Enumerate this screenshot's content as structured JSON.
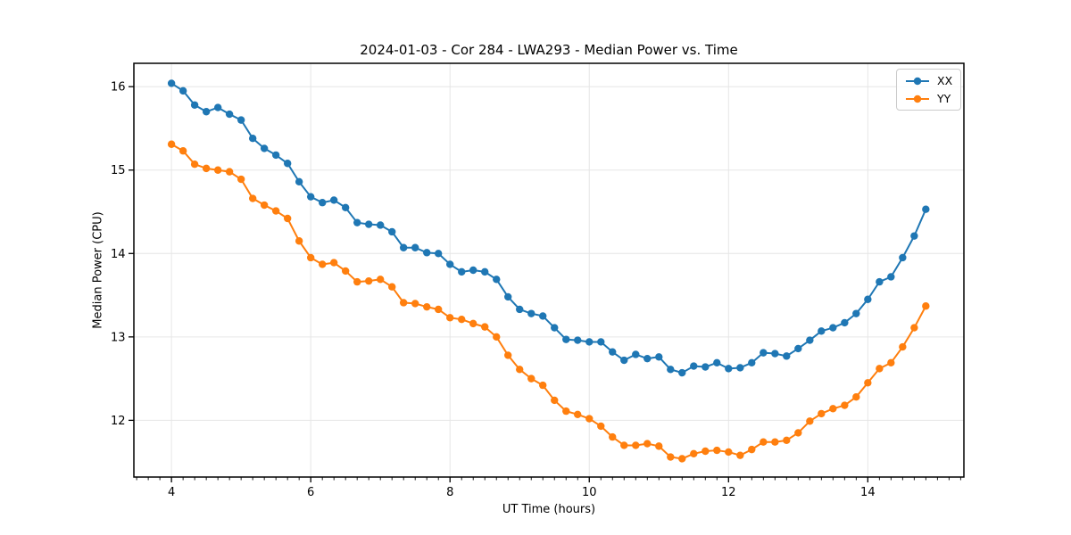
{
  "chart_data": {
    "type": "line",
    "title": "2024-01-03 - Cor 284 - LWA293 - Median Power vs. Time",
    "xlabel": "UT Time (hours)",
    "ylabel": "Median Power (CPU)",
    "xlim": [
      3.46,
      15.38
    ],
    "ylim": [
      11.32,
      16.28
    ],
    "xticks": [
      4,
      6,
      8,
      10,
      12,
      14
    ],
    "yticks": [
      12,
      13,
      14,
      15,
      16
    ],
    "minor_tick_step_x_hours": 0.1667,
    "grid": true,
    "grid_color": "#e6e6e6",
    "legend_position": "upper right",
    "marker": "o",
    "x": [
      4.0,
      4.167,
      4.333,
      4.5,
      4.667,
      4.833,
      5.0,
      5.167,
      5.333,
      5.5,
      5.667,
      5.833,
      6.0,
      6.167,
      6.333,
      6.5,
      6.667,
      6.833,
      7.0,
      7.167,
      7.333,
      7.5,
      7.667,
      7.833,
      8.0,
      8.167,
      8.333,
      8.5,
      8.667,
      8.833,
      9.0,
      9.167,
      9.333,
      9.5,
      9.667,
      9.833,
      10.0,
      10.167,
      10.333,
      10.5,
      10.667,
      10.833,
      11.0,
      11.167,
      11.333,
      11.5,
      11.667,
      11.833,
      12.0,
      12.167,
      12.333,
      12.5,
      12.667,
      12.833,
      13.0,
      13.167,
      13.333,
      13.5,
      13.667,
      13.833,
      14.0,
      14.167,
      14.333,
      14.5,
      14.667,
      14.833
    ],
    "series": [
      {
        "name": "XX",
        "color": "#1f77b4",
        "values": [
          16.04,
          15.95,
          15.78,
          15.7,
          15.75,
          15.67,
          15.6,
          15.38,
          15.26,
          15.18,
          15.08,
          14.86,
          14.68,
          14.61,
          14.64,
          14.55,
          14.37,
          14.35,
          14.34,
          14.26,
          14.07,
          14.07,
          14.01,
          14.0,
          13.87,
          13.78,
          13.8,
          13.78,
          13.69,
          13.48,
          13.33,
          13.28,
          13.25,
          13.11,
          12.97,
          12.96,
          12.94,
          12.94,
          12.82,
          12.72,
          12.79,
          12.74,
          12.76,
          12.61,
          12.57,
          12.65,
          12.64,
          12.69,
          12.62,
          12.63,
          12.69,
          12.81,
          12.8,
          12.77,
          12.86,
          12.96,
          13.07,
          13.11,
          13.17,
          13.28,
          13.45,
          13.66,
          13.72,
          13.95,
          14.21,
          14.53
        ]
      },
      {
        "name": "YY",
        "color": "#ff7f0e",
        "values": [
          15.31,
          15.23,
          15.07,
          15.02,
          15.0,
          14.98,
          14.89,
          14.66,
          14.58,
          14.51,
          14.42,
          14.15,
          13.95,
          13.87,
          13.89,
          13.79,
          13.66,
          13.67,
          13.69,
          13.6,
          13.41,
          13.4,
          13.36,
          13.33,
          13.23,
          13.21,
          13.16,
          13.12,
          13.0,
          12.78,
          12.61,
          12.5,
          12.42,
          12.24,
          12.11,
          12.07,
          12.02,
          11.93,
          11.8,
          11.7,
          11.7,
          11.72,
          11.69,
          11.56,
          11.54,
          11.6,
          11.63,
          11.64,
          11.62,
          11.58,
          11.65,
          11.74,
          11.74,
          11.76,
          11.85,
          11.99,
          12.08,
          12.14,
          12.18,
          12.28,
          12.45,
          12.62,
          12.69,
          12.88,
          13.11,
          13.37
        ]
      }
    ]
  }
}
